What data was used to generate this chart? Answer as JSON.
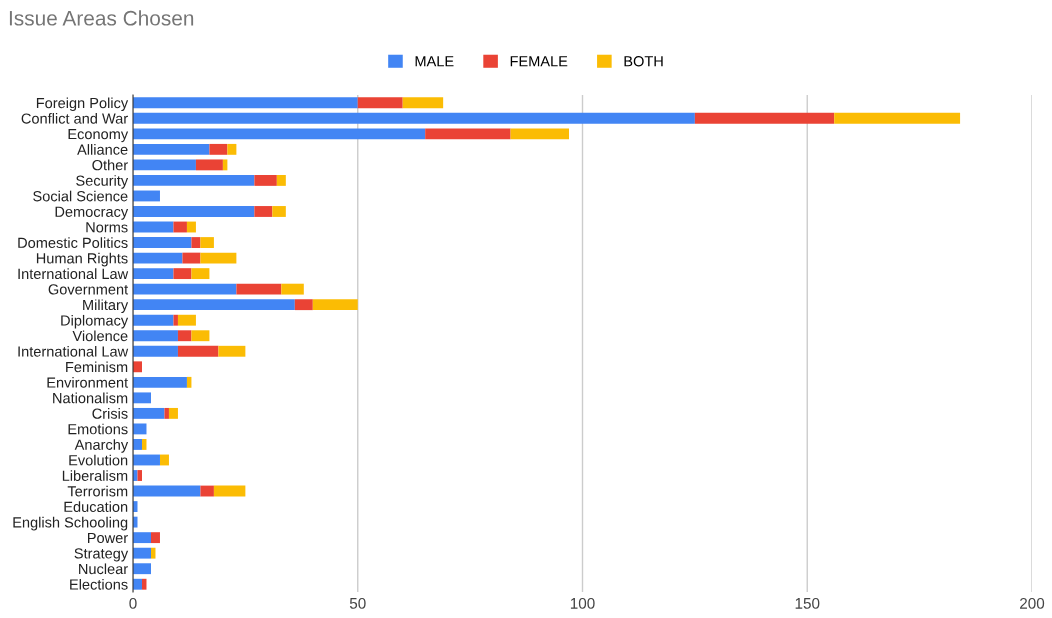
{
  "chart_data": {
    "type": "bar",
    "title": "Issue Areas Chosen",
    "orientation": "horizontal",
    "stacked": true,
    "categories": [
      "Foreign Policy",
      "Conflict and War",
      "Economy",
      "Alliance",
      "Other",
      "Security",
      "Social Science",
      "Democracy",
      "Norms",
      "Domestic Politics",
      "Human Rights",
      "International Law",
      "Government",
      "Military",
      "Diplomacy",
      "Violence",
      "International Law",
      "Feminism",
      "Environment",
      "Nationalism",
      "Crisis",
      "Emotions",
      "Anarchy",
      "Evolution",
      "Liberalism",
      "Terrorism",
      "Education",
      "English Schooling",
      "Power",
      "Strategy",
      "Nuclear",
      "Elections"
    ],
    "series": [
      {
        "name": "MALE",
        "color": "#4285f4",
        "values": [
          50,
          125,
          65,
          17,
          14,
          27,
          6,
          27,
          9,
          13,
          11,
          9,
          23,
          36,
          9,
          10,
          10,
          0,
          12,
          4,
          7,
          3,
          2,
          6,
          1,
          15,
          1,
          1,
          4,
          4,
          4,
          2
        ]
      },
      {
        "name": "FEMALE",
        "color": "#ea4335",
        "values": [
          10,
          31,
          19,
          4,
          6,
          5,
          0,
          4,
          3,
          2,
          4,
          4,
          10,
          4,
          1,
          3,
          9,
          2,
          0,
          0,
          1,
          0,
          0,
          0,
          1,
          3,
          0,
          0,
          2,
          0,
          0,
          1
        ]
      },
      {
        "name": "BOTH",
        "color": "#fbbc04",
        "values": [
          9,
          28,
          13,
          2,
          1,
          2,
          0,
          3,
          2,
          3,
          8,
          4,
          5,
          10,
          4,
          4,
          6,
          0,
          1,
          0,
          2,
          0,
          1,
          2,
          0,
          7,
          0,
          0,
          0,
          1,
          0,
          0
        ]
      }
    ],
    "xlim": [
      0,
      200
    ],
    "xticks": [
      0,
      50,
      100,
      150,
      200
    ],
    "grid": "x",
    "legend": "top"
  }
}
